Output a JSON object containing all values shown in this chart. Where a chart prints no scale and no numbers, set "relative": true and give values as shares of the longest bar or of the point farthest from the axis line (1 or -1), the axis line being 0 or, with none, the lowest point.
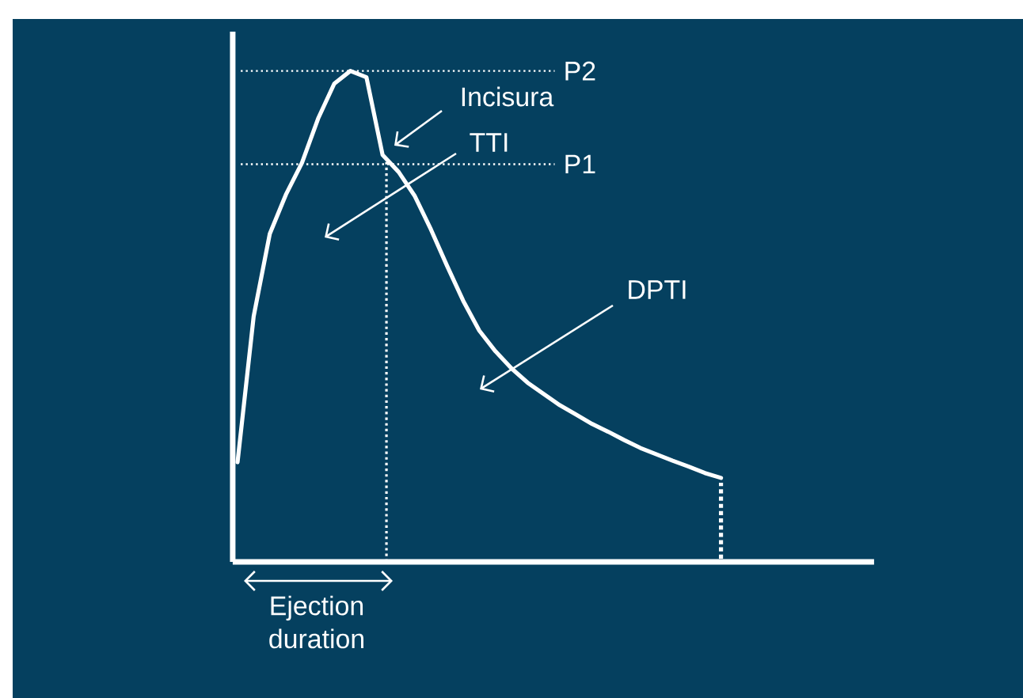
{
  "chart_data": {
    "type": "line",
    "relative": true,
    "marker": "none",
    "line_style": "solid",
    "categories": [
      null,
      null,
      null,
      null,
      null,
      null,
      null,
      null,
      null,
      null,
      null,
      null,
      null,
      null,
      null,
      null,
      null,
      null,
      null,
      null,
      null,
      null,
      null,
      null,
      null,
      null,
      null,
      null,
      null,
      null,
      null
    ],
    "series": [
      {
        "color": "#ffffff",
        "values": [
          0.203,
          0.5,
          0.668,
          0.748,
          0.813,
          0.903,
          0.974,
          1,
          0.987,
          0.829,
          0.794,
          0.745,
          0.677,
          0.603,
          0.532,
          0.471,
          0.429,
          0.394,
          0.365,
          0.342,
          0.319,
          0.3,
          0.281,
          0.265,
          0.248,
          0.232,
          0.219,
          0.206,
          0.194,
          0.181,
          0.171
        ]
      }
    ],
    "ref_lines": [
      {
        "axis": "y",
        "value": 1,
        "label": "P2",
        "line_style": "dotted"
      },
      {
        "axis": "y",
        "value": 0.81,
        "label": "P1",
        "line_style": "dotted"
      }
    ],
    "annotations": [
      "Incisura",
      "TTI",
      "DPTI",
      "Ejection duration"
    ]
  }
}
